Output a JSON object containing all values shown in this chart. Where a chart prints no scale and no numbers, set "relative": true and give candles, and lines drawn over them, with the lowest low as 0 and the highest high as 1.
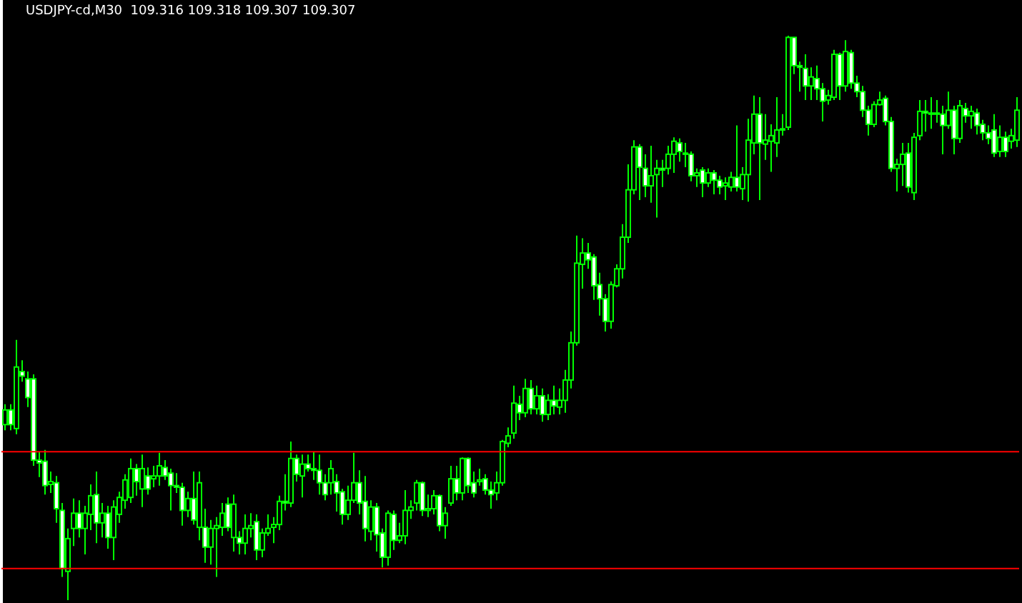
{
  "chart_data": {
    "type": "candlestick",
    "title": "USDJPY-cd,M30  109.316 109.318 109.307 109.307",
    "relative": true,
    "color": "#00ff00",
    "categories": [
      null,
      null,
      null,
      null,
      null,
      null,
      null,
      null,
      null,
      null,
      null,
      null,
      null,
      null,
      null,
      null,
      null,
      null,
      null,
      null,
      null,
      null,
      null,
      null,
      null,
      null,
      null,
      null,
      null,
      null,
      null,
      null,
      null,
      null,
      null,
      null,
      null,
      null,
      null,
      null,
      null,
      null,
      null,
      null,
      null,
      null,
      null,
      null,
      null,
      null,
      null,
      null,
      null,
      null,
      null,
      null,
      null,
      null,
      null,
      null,
      null,
      null,
      null,
      null,
      null,
      null,
      null,
      null,
      null,
      null,
      null,
      null,
      null,
      null,
      null,
      null,
      null,
      null,
      null,
      null,
      null,
      null,
      null,
      null,
      null,
      null,
      null,
      null,
      null,
      null,
      null,
      null,
      null,
      null,
      null,
      null,
      null,
      null,
      null,
      null,
      null,
      null,
      null,
      null,
      null,
      null,
      null,
      null,
      null,
      null,
      null,
      null,
      null,
      null,
      null,
      null,
      null,
      null,
      null,
      null,
      null,
      null,
      null,
      null,
      null,
      null,
      null,
      null,
      null,
      null,
      null,
      null,
      null,
      null,
      null,
      null,
      null,
      null,
      null,
      null,
      null,
      null,
      null,
      null,
      null,
      null,
      null,
      null,
      null,
      null,
      null,
      null,
      null,
      null,
      null,
      null,
      null,
      null,
      null,
      null,
      null,
      null,
      null,
      null,
      null,
      null,
      null,
      null,
      null,
      null,
      null,
      null,
      null,
      null,
      null,
      null,
      null,
      null
    ],
    "ohlc": [
      [
        0.311,
        0.347,
        0.301,
        0.337
      ],
      [
        0.337,
        0.347,
        0.301,
        0.311
      ],
      [
        0.304,
        0.461,
        0.294,
        0.413
      ],
      [
        0.405,
        0.425,
        0.387,
        0.397
      ],
      [
        0.392,
        0.405,
        0.342,
        0.359
      ],
      [
        0.392,
        0.4,
        0.238,
        0.248
      ],
      [
        0.248,
        0.263,
        0.218,
        0.243
      ],
      [
        0.246,
        0.266,
        0.187,
        0.203
      ],
      [
        0.205,
        0.228,
        0.19,
        0.21
      ],
      [
        0.208,
        0.22,
        0.137,
        0.162
      ],
      [
        0.159,
        0.172,
        0.041,
        0.056
      ],
      [
        0.051,
        0.127,
        0,
        0.109
      ],
      [
        0.127,
        0.18,
        0.096,
        0.154
      ],
      [
        0.154,
        0.177,
        0.111,
        0.127
      ],
      [
        0.127,
        0.167,
        0.081,
        0.154
      ],
      [
        0.152,
        0.205,
        0.124,
        0.185
      ],
      [
        0.187,
        0.228,
        0.101,
        0.137
      ],
      [
        0.137,
        0.172,
        0.111,
        0.154
      ],
      [
        0.154,
        0.167,
        0.091,
        0.111
      ],
      [
        0.111,
        0.177,
        0.071,
        0.165
      ],
      [
        0.152,
        0.192,
        0.137,
        0.182
      ],
      [
        0.177,
        0.223,
        0.162,
        0.213
      ],
      [
        0.182,
        0.251,
        0.172,
        0.233
      ],
      [
        0.233,
        0.241,
        0.185,
        0.21
      ],
      [
        0.197,
        0.258,
        0.165,
        0.233
      ],
      [
        0.22,
        0.235,
        0.187,
        0.197
      ],
      [
        0.215,
        0.238,
        0.2,
        0.22
      ],
      [
        0.22,
        0.261,
        0.203,
        0.238
      ],
      [
        0.235,
        0.248,
        0.213,
        0.22
      ],
      [
        0.225,
        0.233,
        0.159,
        0.203
      ],
      [
        0.203,
        0.225,
        0.19,
        0.2
      ],
      [
        0.2,
        0.208,
        0.132,
        0.159
      ],
      [
        0.159,
        0.192,
        0.147,
        0.18
      ],
      [
        0.18,
        0.228,
        0.134,
        0.142
      ],
      [
        0.129,
        0.228,
        0.106,
        0.208
      ],
      [
        0.129,
        0.162,
        0.066,
        0.094
      ],
      [
        0.094,
        0.142,
        0.063,
        0.127
      ],
      [
        0.127,
        0.147,
        0.041,
        0.132
      ],
      [
        0.129,
        0.172,
        0.114,
        0.154
      ],
      [
        0.17,
        0.182,
        0.122,
        0.129
      ],
      [
        0.111,
        0.187,
        0.086,
        0.17
      ],
      [
        0.111,
        0.122,
        0.081,
        0.101
      ],
      [
        0.101,
        0.152,
        0.081,
        0.127
      ],
      [
        0.127,
        0.154,
        0.111,
        0.132
      ],
      [
        0.139,
        0.152,
        0.071,
        0.089
      ],
      [
        0.089,
        0.127,
        0.076,
        0.119
      ],
      [
        0.119,
        0.152,
        0.114,
        0.127
      ],
      [
        0.129,
        0.147,
        0.101,
        0.134
      ],
      [
        0.134,
        0.185,
        0.124,
        0.175
      ],
      [
        0.175,
        0.223,
        0.159,
        0.172
      ],
      [
        0.172,
        0.281,
        0.165,
        0.251
      ],
      [
        0.251,
        0.258,
        0.21,
        0.223
      ],
      [
        0.22,
        0.258,
        0.182,
        0.241
      ],
      [
        0.241,
        0.258,
        0.228,
        0.233
      ],
      [
        0.233,
        0.263,
        0.213,
        0.23
      ],
      [
        0.23,
        0.258,
        0.187,
        0.208
      ],
      [
        0.208,
        0.223,
        0.177,
        0.187
      ],
      [
        0.208,
        0.248,
        0.187,
        0.233
      ],
      [
        0.21,
        0.223,
        0.157,
        0.19
      ],
      [
        0.192,
        0.197,
        0.134,
        0.152
      ],
      [
        0.152,
        0.203,
        0.142,
        0.177
      ],
      [
        0.177,
        0.261,
        0.172,
        0.208
      ],
      [
        0.208,
        0.23,
        0.152,
        0.172
      ],
      [
        0.175,
        0.22,
        0.104,
        0.127
      ],
      [
        0.122,
        0.177,
        0.106,
        0.165
      ],
      [
        0.165,
        0.172,
        0.086,
        0.116
      ],
      [
        0.119,
        0.127,
        0.058,
        0.076
      ],
      [
        0.076,
        0.159,
        0.061,
        0.154
      ],
      [
        0.152,
        0.159,
        0.089,
        0.106
      ],
      [
        0.106,
        0.137,
        0.101,
        0.114
      ],
      [
        0.114,
        0.195,
        0.099,
        0.159
      ],
      [
        0.159,
        0.177,
        0.144,
        0.165
      ],
      [
        0.172,
        0.213,
        0.159,
        0.208
      ],
      [
        0.208,
        0.21,
        0.149,
        0.159
      ],
      [
        0.159,
        0.187,
        0.147,
        0.162
      ],
      [
        0.162,
        0.195,
        0.152,
        0.185
      ],
      [
        0.185,
        0.187,
        0.122,
        0.132
      ],
      [
        0.132,
        0.165,
        0.109,
        0.154
      ],
      [
        0.172,
        0.238,
        0.167,
        0.215
      ],
      [
        0.215,
        0.238,
        0.177,
        0.19
      ],
      [
        0.19,
        0.253,
        0.177,
        0.251
      ],
      [
        0.251,
        0.253,
        0.19,
        0.203
      ],
      [
        0.208,
        0.228,
        0.182,
        0.19
      ],
      [
        0.21,
        0.233,
        0.203,
        0.213
      ],
      [
        0.215,
        0.223,
        0.187,
        0.195
      ],
      [
        0.195,
        0.21,
        0.162,
        0.187
      ],
      [
        0.19,
        0.228,
        0.177,
        0.208
      ],
      [
        0.208,
        0.284,
        0.203,
        0.281
      ],
      [
        0.278,
        0.306,
        0.271,
        0.291
      ],
      [
        0.296,
        0.38,
        0.286,
        0.349
      ],
      [
        0.347,
        0.362,
        0.319,
        0.332
      ],
      [
        0.332,
        0.392,
        0.324,
        0.375
      ],
      [
        0.375,
        0.39,
        0.329,
        0.339
      ],
      [
        0.339,
        0.38,
        0.329,
        0.362
      ],
      [
        0.362,
        0.375,
        0.316,
        0.329
      ],
      [
        0.329,
        0.365,
        0.319,
        0.354
      ],
      [
        0.354,
        0.38,
        0.329,
        0.344
      ],
      [
        0.342,
        0.375,
        0.329,
        0.354
      ],
      [
        0.354,
        0.408,
        0.332,
        0.39
      ],
      [
        0.39,
        0.476,
        0.375,
        0.456
      ],
      [
        0.456,
        0.646,
        0.451,
        0.597
      ],
      [
        0.595,
        0.641,
        0.552,
        0.615
      ],
      [
        0.615,
        0.633,
        0.587,
        0.603
      ],
      [
        0.608,
        0.613,
        0.532,
        0.557
      ],
      [
        0.559,
        0.58,
        0.504,
        0.534
      ],
      [
        0.534,
        0.542,
        0.476,
        0.494
      ],
      [
        0.494,
        0.565,
        0.481,
        0.559
      ],
      [
        0.557,
        0.595,
        0.554,
        0.587
      ],
      [
        0.587,
        0.666,
        0.57,
        0.643
      ],
      [
        0.643,
        0.772,
        0.633,
        0.727
      ],
      [
        0.727,
        0.815,
        0.719,
        0.803
      ],
      [
        0.803,
        0.808,
        0.709,
        0.767
      ],
      [
        0.765,
        0.79,
        0.714,
        0.734
      ],
      [
        0.734,
        0.805,
        0.704,
        0.752
      ],
      [
        0.754,
        0.78,
        0.678,
        0.765
      ],
      [
        0.765,
        0.78,
        0.732,
        0.762
      ],
      [
        0.765,
        0.805,
        0.754,
        0.79
      ],
      [
        0.79,
        0.82,
        0.757,
        0.813
      ],
      [
        0.81,
        0.818,
        0.777,
        0.795
      ],
      [
        0.792,
        0.81,
        0.767,
        0.79
      ],
      [
        0.79,
        0.795,
        0.742,
        0.752
      ],
      [
        0.752,
        0.765,
        0.732,
        0.757
      ],
      [
        0.762,
        0.767,
        0.714,
        0.739
      ],
      [
        0.739,
        0.765,
        0.732,
        0.757
      ],
      [
        0.757,
        0.762,
        0.719,
        0.744
      ],
      [
        0.744,
        0.752,
        0.719,
        0.732
      ],
      [
        0.734,
        0.749,
        0.709,
        0.739
      ],
      [
        0.732,
        0.759,
        0.724,
        0.749
      ],
      [
        0.749,
        0.841,
        0.724,
        0.732
      ],
      [
        0.729,
        0.767,
        0.709,
        0.754
      ],
      [
        0.754,
        0.853,
        0.706,
        0.815
      ],
      [
        0.81,
        0.894,
        0.79,
        0.861
      ],
      [
        0.861,
        0.891,
        0.709,
        0.81
      ],
      [
        0.808,
        0.861,
        0.78,
        0.815
      ],
      [
        0.813,
        0.843,
        0.759,
        0.823
      ],
      [
        0.81,
        0.891,
        0.785,
        0.833
      ],
      [
        0.833,
        0.861,
        0.823,
        0.835
      ],
      [
        0.838,
        1,
        0.833,
        0.997
      ],
      [
        0.997,
        0.997,
        0.932,
        0.947
      ],
      [
        0.947,
        0.954,
        0.901,
        0.944
      ],
      [
        0.942,
        0.967,
        0.886,
        0.911
      ],
      [
        0.911,
        0.944,
        0.886,
        0.927
      ],
      [
        0.924,
        0.947,
        0.886,
        0.906
      ],
      [
        0.906,
        0.916,
        0.848,
        0.884
      ],
      [
        0.886,
        0.904,
        0.878,
        0.894
      ],
      [
        0.891,
        0.975,
        0.886,
        0.967
      ],
      [
        0.967,
        0.97,
        0.886,
        0.911
      ],
      [
        0.911,
        0.992,
        0.901,
        0.972
      ],
      [
        0.97,
        0.975,
        0.906,
        0.916
      ],
      [
        0.916,
        0.929,
        0.891,
        0.901
      ],
      [
        0.901,
        0.911,
        0.856,
        0.868
      ],
      [
        0.868,
        0.876,
        0.823,
        0.843
      ],
      [
        0.843,
        0.884,
        0.838,
        0.878
      ],
      [
        0.878,
        0.901,
        0.876,
        0.886
      ],
      [
        0.889,
        0.894,
        0.841,
        0.848
      ],
      [
        0.848,
        0.856,
        0.759,
        0.765
      ],
      [
        0.765,
        0.782,
        0.724,
        0.772
      ],
      [
        0.772,
        0.81,
        0.734,
        0.79
      ],
      [
        0.792,
        0.81,
        0.722,
        0.732
      ],
      [
        0.722,
        0.828,
        0.709,
        0.82
      ],
      [
        0.823,
        0.886,
        0.815,
        0.866
      ],
      [
        0.866,
        0.886,
        0.83,
        0.863
      ],
      [
        0.863,
        0.891,
        0.835,
        0.861
      ],
      [
        0.861,
        0.886,
        0.846,
        0.863
      ],
      [
        0.861,
        0.876,
        0.79,
        0.841
      ],
      [
        0.841,
        0.901,
        0.835,
        0.868
      ],
      [
        0.868,
        0.876,
        0.79,
        0.818
      ],
      [
        0.818,
        0.886,
        0.81,
        0.876
      ],
      [
        0.871,
        0.881,
        0.846,
        0.858
      ],
      [
        0.858,
        0.876,
        0.835,
        0.866
      ],
      [
        0.863,
        0.871,
        0.825,
        0.841
      ],
      [
        0.843,
        0.851,
        0.815,
        0.828
      ],
      [
        0.828,
        0.841,
        0.808,
        0.818
      ],
      [
        0.833,
        0.861,
        0.785,
        0.792
      ],
      [
        0.795,
        0.841,
        0.785,
        0.82
      ],
      [
        0.82,
        0.83,
        0.785,
        0.795
      ],
      [
        0.813,
        0.835,
        0.8,
        0.823
      ],
      [
        0.815,
        0.891,
        0.803,
        0.868
      ]
    ],
    "ref_lines": [
      {
        "axis": "y",
        "value": 0.263,
        "color": "#ff0000"
      },
      {
        "axis": "y",
        "value": 0.056,
        "color": "#ff0000"
      }
    ]
  }
}
